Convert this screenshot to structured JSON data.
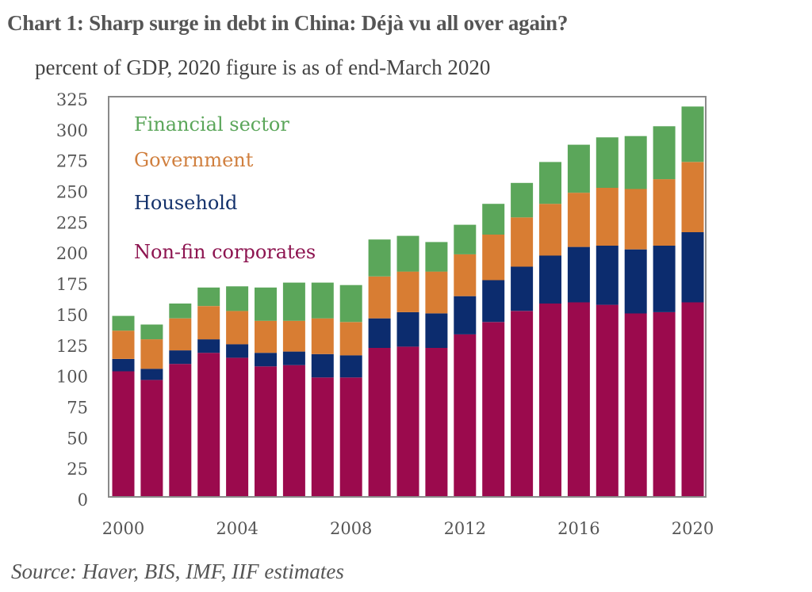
{
  "title": "Chart 1:  Sharp surge in debt in China: Déjà vu all over again?",
  "subtitle": "percent of GDP,  2020 figure is as of end-March 2020",
  "source": "Source: Haver, BIS, IMF, IIF estimates",
  "chart_data": {
    "type": "bar",
    "stacked": true,
    "title": "Chart 1:  Sharp surge in debt in China: Déjà vu all over again?",
    "subtitle": "percent of GDP,  2020 figure is as of end-March 2020",
    "xlabel": "",
    "ylabel": "percent of GDP",
    "ylim": [
      0,
      325
    ],
    "yticks": [
      0,
      25,
      50,
      75,
      100,
      125,
      150,
      175,
      200,
      225,
      250,
      275,
      300,
      325
    ],
    "categories": [
      "2000",
      "2001",
      "2002",
      "2003",
      "2004",
      "2005",
      "2006",
      "2007",
      "2008",
      "2009",
      "2010",
      "2011",
      "2012",
      "2013",
      "2014",
      "2015",
      "2016",
      "2017",
      "2018",
      "2019",
      "2020"
    ],
    "xtick_labels": [
      "2000",
      "2004",
      "2008",
      "2012",
      "2016",
      "2020"
    ],
    "grid": false,
    "legend_position": "top-left",
    "series": [
      {
        "name": "Non-fin corporates",
        "color": "#9b0a4d",
        "values": [
          102,
          95,
          108,
          117,
          113,
          106,
          107,
          97,
          97,
          121,
          122,
          121,
          132,
          142,
          151,
          157,
          158,
          156,
          149,
          150,
          158
        ]
      },
      {
        "name": "Household",
        "color": "#0c2c6e",
        "values": [
          10,
          9,
          11,
          11,
          11,
          11,
          11,
          19,
          18,
          24,
          28,
          28,
          31,
          34,
          36,
          39,
          45,
          48,
          52,
          54,
          57
        ]
      },
      {
        "name": "Government",
        "color": "#d87d33",
        "values": [
          23,
          24,
          26,
          27,
          27,
          26,
          25,
          29,
          27,
          34,
          33,
          34,
          34,
          37,
          40,
          42,
          44,
          47,
          49,
          54,
          57
        ]
      },
      {
        "name": "Financial sector",
        "color": "#5ba65a",
        "values": [
          12,
          12,
          12,
          15,
          20,
          27,
          31,
          29,
          30,
          30,
          29,
          24,
          24,
          25,
          28,
          34,
          39,
          41,
          43,
          43,
          45
        ]
      }
    ],
    "legend_order": [
      "Financial sector",
      "Government",
      "Household",
      "Non-fin corporates"
    ],
    "legend_colors": {
      "Financial sector": "#5ba65a",
      "Government": "#d07f3e",
      "Household": "#13316b",
      "Non-fin corporates": "#8d1450"
    }
  }
}
